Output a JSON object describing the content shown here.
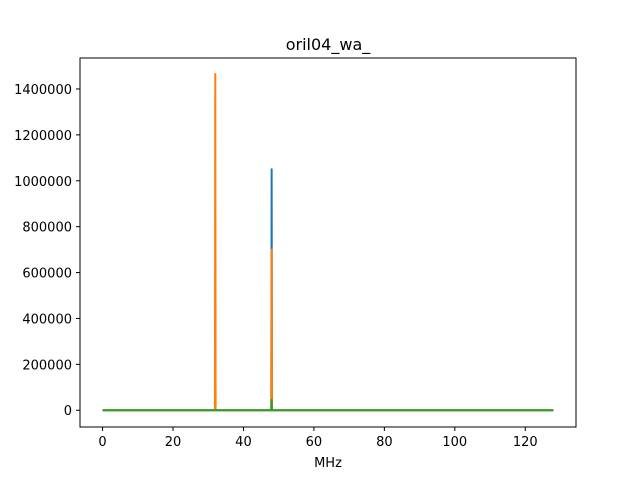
{
  "chart_data": {
    "type": "line",
    "title": "oril04_wa_",
    "xlabel": "MHz",
    "ylabel": "",
    "xlim": [
      -6.4,
      134.4
    ],
    "ylim": [
      -73000,
      1535000
    ],
    "xticks": [
      0,
      20,
      40,
      60,
      80,
      100,
      120
    ],
    "yticks": [
      0,
      200000,
      400000,
      600000,
      800000,
      1000000,
      1200000,
      1400000
    ],
    "grid": false,
    "series": [
      {
        "color": "#1f77b4",
        "points": [
          [
            0,
            0
          ],
          [
            47.9,
            0
          ],
          [
            48,
            1050000
          ],
          [
            48.1,
            0
          ],
          [
            128,
            0
          ]
        ]
      },
      {
        "color": "#ff7f0e",
        "points": [
          [
            0,
            0
          ],
          [
            31.9,
            0
          ],
          [
            32,
            1465000
          ],
          [
            32.1,
            0
          ],
          [
            47.9,
            0
          ],
          [
            48,
            700000
          ],
          [
            48.1,
            0
          ],
          [
            128,
            0
          ]
        ]
      },
      {
        "color": "#2ca02c",
        "points": [
          [
            0,
            0
          ],
          [
            47.9,
            0
          ],
          [
            48,
            45000
          ],
          [
            48.1,
            0
          ],
          [
            128,
            0
          ]
        ]
      }
    ]
  }
}
